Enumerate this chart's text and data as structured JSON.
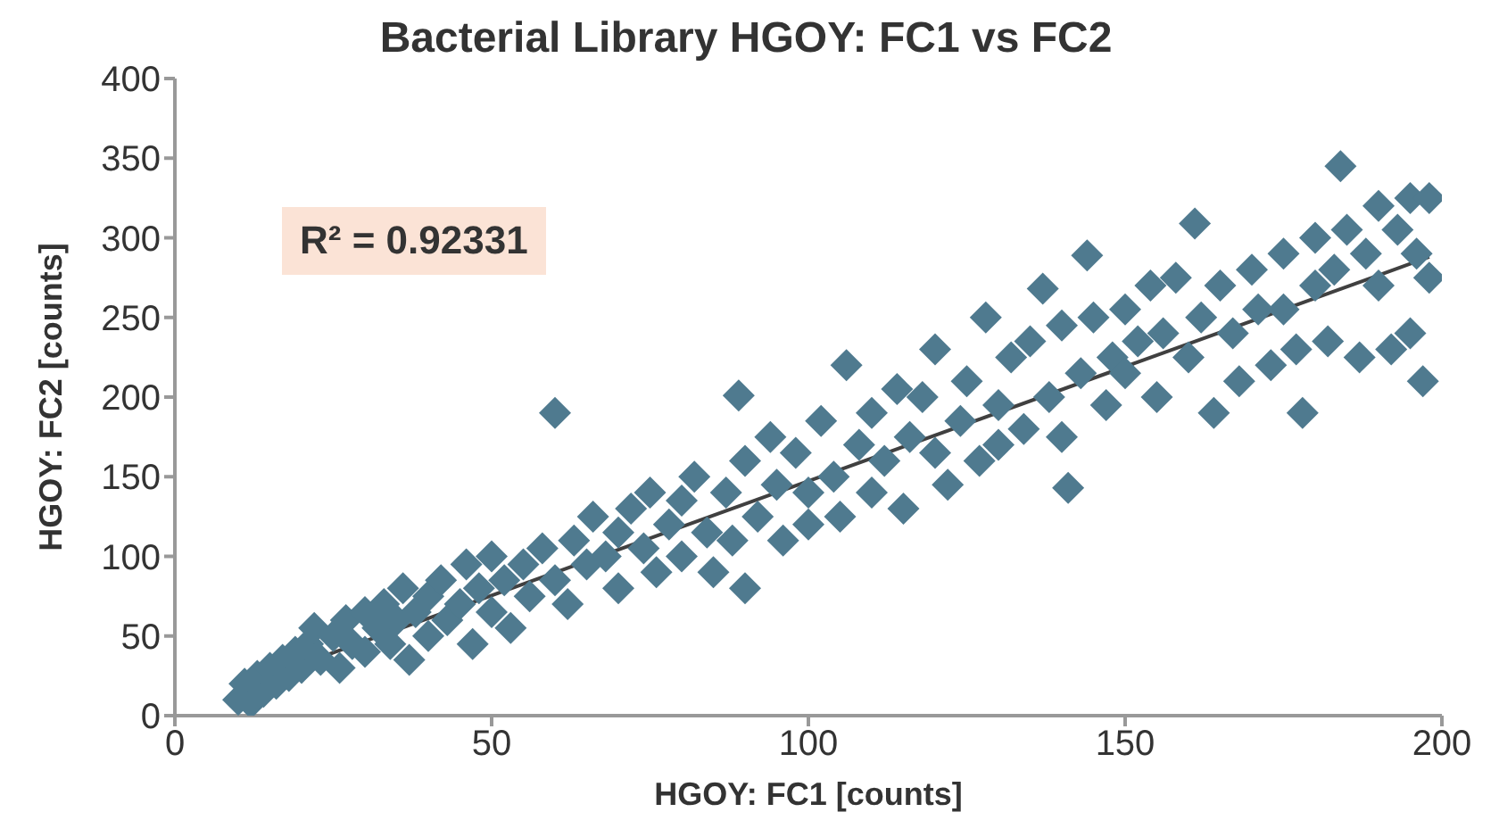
{
  "chart_data": {
    "type": "scatter",
    "title": "Bacterial Library HGOY: FC1 vs FC2",
    "xlabel": "HGOY: FC1 [counts]",
    "ylabel": "HGOY: FC2 [counts]",
    "annotations": [
      "R² = 0.92331"
    ],
    "marker": "diamond",
    "grid": false,
    "legend": false,
    "xlim": [
      0,
      200
    ],
    "xticks": [
      0,
      50,
      100,
      150,
      200
    ],
    "ylim": [
      0,
      400
    ],
    "yticks": [
      0,
      50,
      100,
      150,
      200,
      250,
      300,
      350,
      400
    ],
    "series": [
      {
        "color": "#4f7a8f",
        "x": [
          10,
          11,
          12,
          13,
          14,
          15,
          16,
          17,
          18,
          19,
          20,
          21,
          22,
          23,
          25,
          26,
          27,
          28,
          30,
          30,
          32,
          33,
          34,
          35,
          36,
          37,
          38,
          40,
          40,
          42,
          43,
          45,
          46,
          47,
          48,
          50,
          50,
          52,
          53,
          55,
          56,
          58,
          60,
          60,
          62,
          63,
          65,
          66,
          68,
          70,
          70,
          72,
          74,
          75,
          76,
          78,
          80,
          80,
          82,
          84,
          85,
          87,
          88,
          89,
          90,
          90,
          92,
          94,
          95,
          96,
          98,
          100,
          100,
          102,
          104,
          105,
          106,
          108,
          110,
          110,
          112,
          114,
          115,
          116,
          118,
          120,
          120,
          122,
          124,
          125,
          127,
          128,
          130,
          130,
          132,
          134,
          135,
          137,
          138,
          140,
          140,
          141,
          143,
          144,
          145,
          147,
          148,
          150,
          150,
          152,
          154,
          155,
          156,
          158,
          160,
          161,
          162,
          164,
          165,
          167,
          168,
          170,
          171,
          173,
          175,
          175,
          177,
          178,
          180,
          180,
          182,
          183,
          184,
          185,
          187,
          188,
          190,
          190,
          192,
          193,
          195,
          195,
          196,
          197,
          198,
          198
        ],
        "values": [
          10,
          20,
          8,
          25,
          15,
          30,
          20,
          35,
          25,
          40,
          30,
          45,
          55,
          35,
          50,
          30,
          60,
          45,
          65,
          40,
          55,
          70,
          45,
          60,
          80,
          35,
          65,
          75,
          50,
          85,
          60,
          70,
          95,
          45,
          80,
          100,
          65,
          85,
          55,
          95,
          75,
          105,
          190,
          85,
          70,
          110,
          95,
          125,
          100,
          115,
          80,
          130,
          105,
          140,
          90,
          120,
          135,
          100,
          150,
          115,
          90,
          140,
          110,
          201,
          160,
          80,
          125,
          175,
          145,
          110,
          165,
          140,
          120,
          185,
          150,
          125,
          220,
          170,
          190,
          140,
          160,
          205,
          130,
          175,
          200,
          165,
          230,
          145,
          185,
          210,
          160,
          250,
          195,
          170,
          225,
          180,
          235,
          268,
          200,
          245,
          175,
          143,
          215,
          289,
          250,
          195,
          225,
          255,
          215,
          235,
          270,
          200,
          240,
          275,
          225,
          309,
          250,
          190,
          270,
          240,
          210,
          280,
          255,
          220,
          290,
          255,
          230,
          190,
          300,
          270,
          235,
          280,
          345,
          305,
          225,
          290,
          320,
          270,
          230,
          305,
          325,
          240,
          290,
          210,
          325,
          275
        ]
      },
      {
        "type": "line",
        "color": "#404040",
        "line_style": "solid",
        "marker": "none",
        "x": [
          10,
          198
        ],
        "values": [
          18,
          288
        ]
      }
    ]
  }
}
